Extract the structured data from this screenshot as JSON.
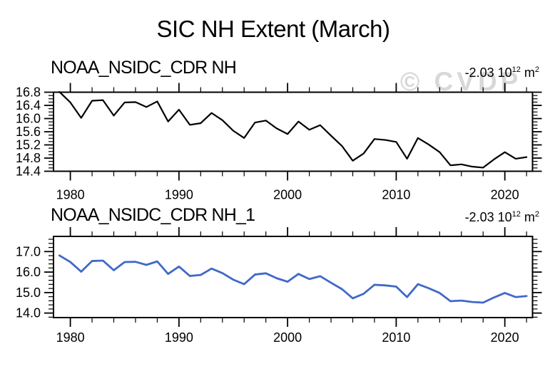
{
  "page": {
    "title": "SIC NH Extent (March)",
    "watermark": "© CVDP",
    "watermark_color": "#d8d8d8",
    "background": "#ffffff",
    "text_color": "#000000"
  },
  "chart_data": [
    {
      "id": "top-chart",
      "type": "line",
      "title": "NOAA_NSIDC_CDR NH",
      "annotation": {
        "coef": "-2.03 10",
        "exp": "12",
        "unit": " m",
        "unit_exp": "2"
      },
      "color": "#000000",
      "xlabel": "",
      "ylabel": "",
      "grid": false,
      "x": [
        1979,
        1980,
        1981,
        1982,
        1983,
        1984,
        1985,
        1986,
        1987,
        1988,
        1989,
        1990,
        1991,
        1992,
        1993,
        1994,
        1995,
        1996,
        1997,
        1998,
        1999,
        2000,
        2001,
        2002,
        2003,
        2004,
        2005,
        2006,
        2007,
        2008,
        2009,
        2010,
        2011,
        2012,
        2013,
        2014,
        2015,
        2016,
        2017,
        2018,
        2019,
        2020,
        2021,
        2022
      ],
      "values": [
        16.81,
        16.49,
        16.02,
        16.54,
        16.56,
        16.09,
        16.49,
        16.5,
        16.35,
        16.52,
        15.91,
        16.27,
        15.81,
        15.86,
        16.17,
        15.95,
        15.63,
        15.41,
        15.88,
        15.94,
        15.7,
        15.53,
        15.91,
        15.66,
        15.8,
        15.48,
        15.17,
        14.72,
        14.94,
        15.38,
        15.35,
        15.29,
        14.78,
        15.41,
        15.21,
        14.98,
        14.58,
        14.61,
        14.54,
        14.51,
        14.76,
        14.98,
        14.78,
        14.83
      ],
      "xlim": [
        1978.45,
        2022.55
      ],
      "ylim": [
        14.4,
        16.8
      ],
      "yticks": [
        16.8,
        16.4,
        16.0,
        15.6,
        15.2,
        14.8,
        14.4
      ],
      "ytick_labels": [
        "16.8",
        "16.4",
        "16.0",
        "15.6",
        "15.2",
        "14.8",
        "14.4"
      ],
      "y_minor_step": 0.1,
      "xticks": [
        1980,
        1990,
        2000,
        2010,
        2020
      ],
      "xtick_labels": [
        "1980",
        "1990",
        "2000",
        "2010",
        "2020"
      ],
      "x_minor_step": 2
    },
    {
      "id": "bottom-chart",
      "type": "line",
      "title": "NOAA_NSIDC_CDR NH_1",
      "annotation": {
        "coef": "-2.03 10",
        "exp": "12",
        "unit": " m",
        "unit_exp": "2"
      },
      "color": "#4169c8",
      "xlabel": "",
      "ylabel": "",
      "grid": false,
      "x": [
        1979,
        1980,
        1981,
        1982,
        1983,
        1984,
        1985,
        1986,
        1987,
        1988,
        1989,
        1990,
        1991,
        1992,
        1993,
        1994,
        1995,
        1996,
        1997,
        1998,
        1999,
        2000,
        2001,
        2002,
        2003,
        2004,
        2005,
        2006,
        2007,
        2008,
        2009,
        2010,
        2011,
        2012,
        2013,
        2014,
        2015,
        2016,
        2017,
        2018,
        2019,
        2020,
        2021,
        2022
      ],
      "values": [
        16.81,
        16.49,
        16.02,
        16.54,
        16.56,
        16.09,
        16.49,
        16.5,
        16.35,
        16.52,
        15.91,
        16.27,
        15.81,
        15.86,
        16.17,
        15.95,
        15.63,
        15.41,
        15.88,
        15.94,
        15.7,
        15.53,
        15.91,
        15.66,
        15.8,
        15.48,
        15.17,
        14.72,
        14.94,
        15.38,
        15.35,
        15.29,
        14.78,
        15.41,
        15.21,
        14.98,
        14.58,
        14.61,
        14.54,
        14.51,
        14.76,
        14.98,
        14.78,
        14.83
      ],
      "xlim": [
        1978.45,
        2022.55
      ],
      "ylim": [
        13.78,
        17.74
      ],
      "yticks": [
        17.0,
        16.0,
        15.0,
        14.0
      ],
      "ytick_labels": [
        "17.0",
        "16.0",
        "15.0",
        "14.0"
      ],
      "y_minor_step": 0.2,
      "xticks": [
        1980,
        1990,
        2000,
        2010,
        2020
      ],
      "xtick_labels": [
        "1980",
        "1990",
        "2000",
        "2010",
        "2020"
      ],
      "x_minor_step": 2
    }
  ]
}
